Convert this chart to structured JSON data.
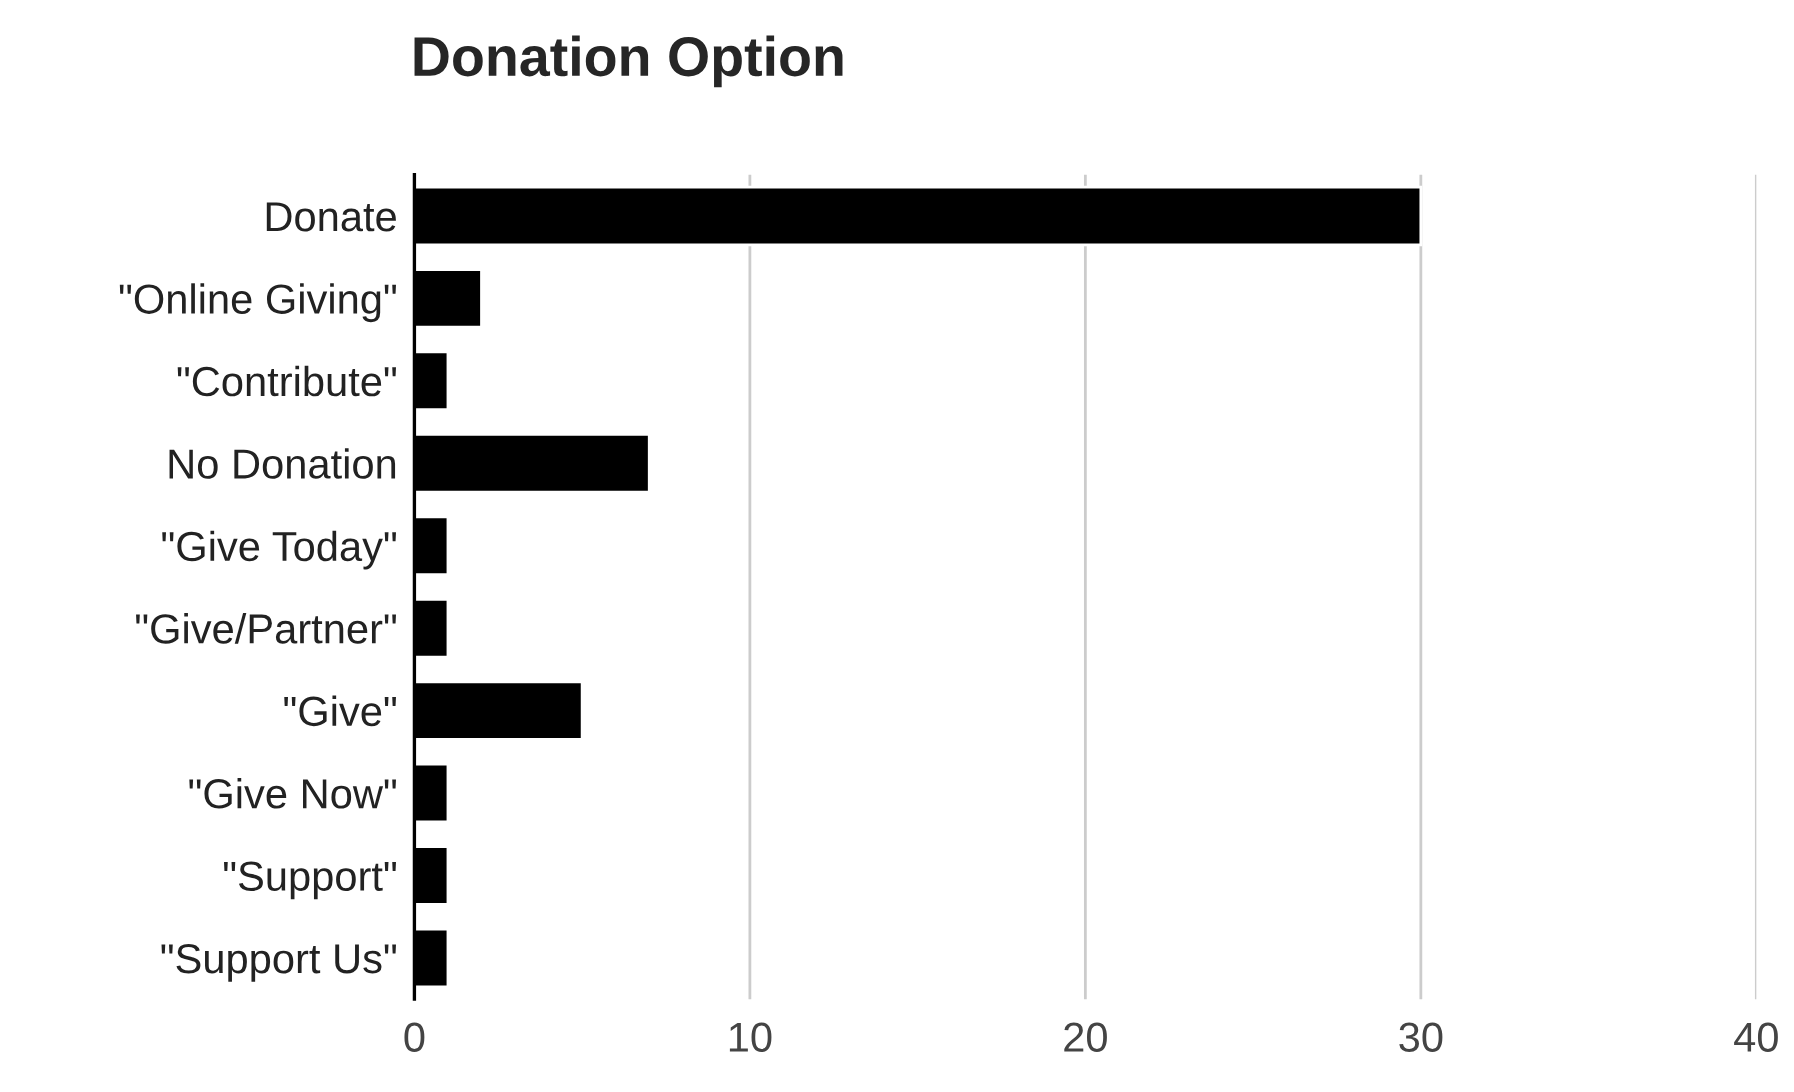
{
  "chart_data": {
    "type": "bar",
    "orientation": "horizontal",
    "title": "Donation Option",
    "categories": [
      "Donate",
      "\"Online Giving\"",
      "\"Contribute\"",
      "No Donation",
      "\"Give Today\"",
      "\"Give/Partner\"",
      "\"Give\"",
      "\"Give Now\"",
      "\"Support\"",
      "\"Support Us\""
    ],
    "values": [
      30,
      2,
      1,
      7,
      1,
      1,
      5,
      1,
      1,
      1
    ],
    "color": "#000000",
    "xlim": [
      0,
      40
    ],
    "xticks": [
      0,
      10,
      20,
      30,
      40
    ],
    "grid": "x",
    "legend": false
  }
}
